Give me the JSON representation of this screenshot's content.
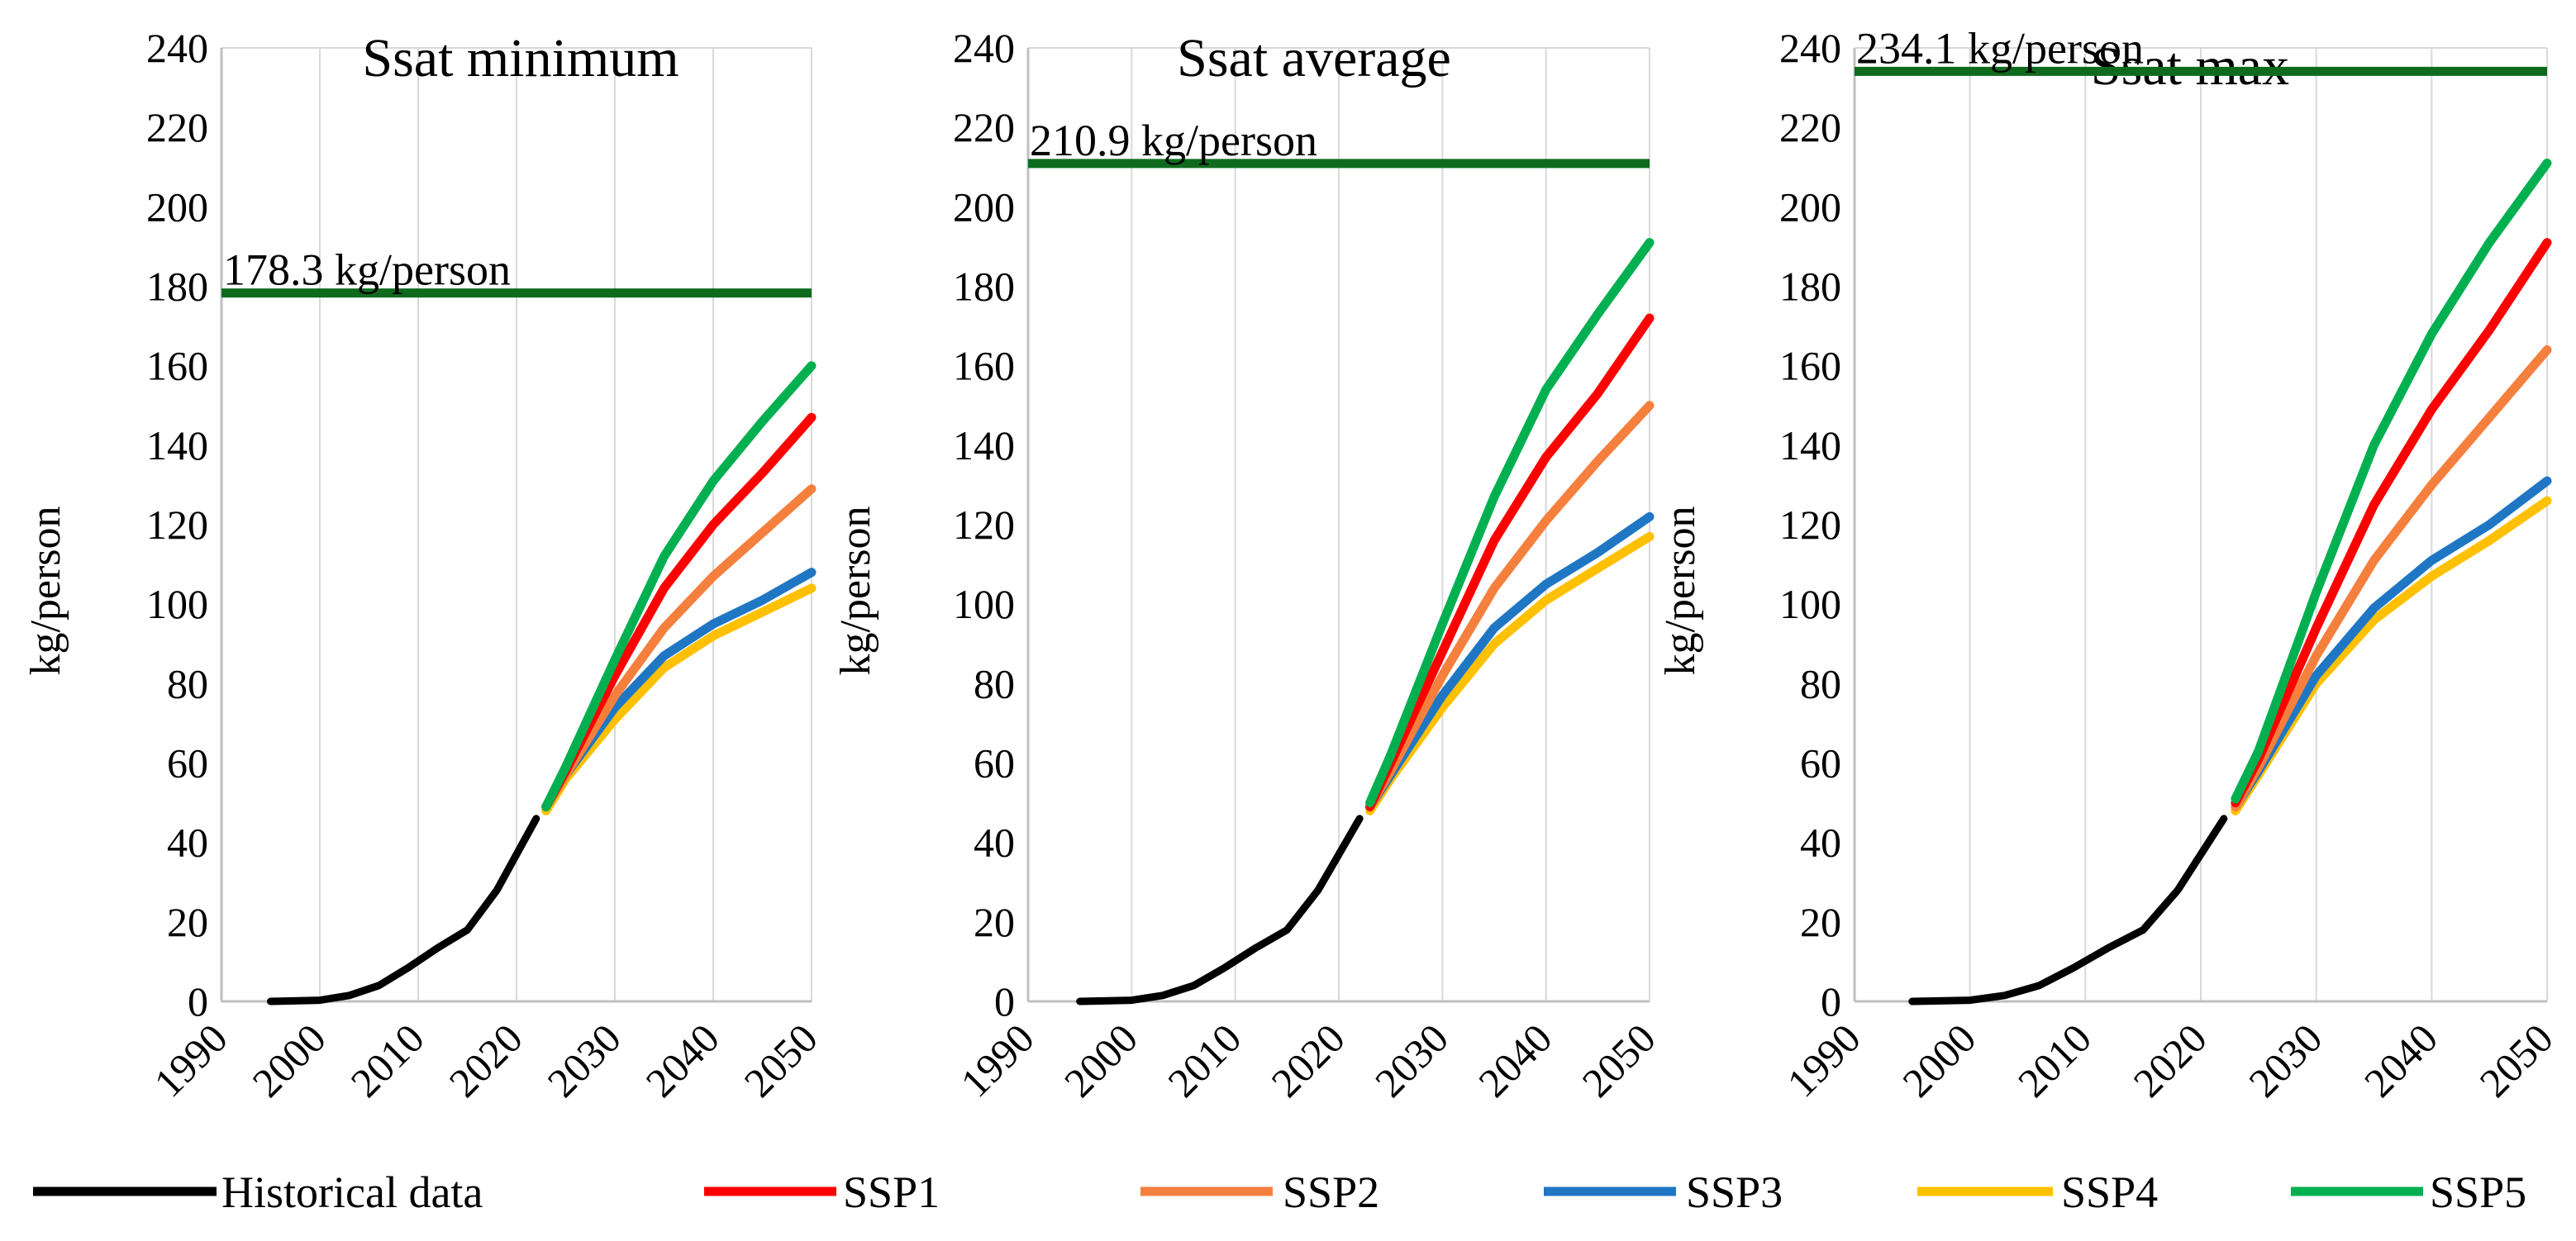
{
  "colors": {
    "historical": "#000000",
    "SSP1": "#ff0000",
    "SSP2": "#f5803e",
    "SSP3": "#1f77c4",
    "SSP4": "#ffc000",
    "SSP5": "#00b050",
    "saturation": "#0e6b1e",
    "grid": "#d9d9d9",
    "axis": "#bfbfbf"
  },
  "legend": [
    {
      "key": "historical",
      "label": "Historical data"
    },
    {
      "key": "SSP1",
      "label": "SSP1"
    },
    {
      "key": "SSP2",
      "label": "SSP2"
    },
    {
      "key": "SSP3",
      "label": "SSP3"
    },
    {
      "key": "SSP4",
      "label": "SSP4"
    },
    {
      "key": "SSP5",
      "label": "SSP5"
    }
  ],
  "chart_data": [
    {
      "type": "line",
      "title": "Ssat minimum",
      "xlabel": "",
      "ylabel": "kg/person",
      "xlim": [
        1990,
        2050
      ],
      "ylim": [
        0,
        240
      ],
      "xticks": [
        1990,
        2000,
        2010,
        2020,
        2030,
        2040,
        2050
      ],
      "yticks": [
        0,
        20,
        40,
        60,
        80,
        100,
        120,
        140,
        160,
        180,
        200,
        220,
        240
      ],
      "grid": "vertical",
      "saturation": {
        "value": 178.3,
        "label": "178.3 kg/person"
      },
      "historical": {
        "x": [
          1995,
          2000,
          2003,
          2006,
          2009,
          2012,
          2015,
          2018,
          2020,
          2022
        ],
        "y": [
          0,
          0.3,
          1.5,
          4,
          8.5,
          13.5,
          18,
          28,
          37,
          46
        ]
      },
      "series": [
        {
          "name": "SSP1",
          "x": [
            2023,
            2025,
            2030,
            2035,
            2040,
            2045,
            2050
          ],
          "y": [
            49,
            58,
            82,
            104,
            120,
            133,
            147
          ]
        },
        {
          "name": "SSP2",
          "x": [
            2023,
            2025,
            2030,
            2035,
            2040,
            2045,
            2050
          ],
          "y": [
            49,
            57,
            77,
            94,
            107,
            118,
            129
          ]
        },
        {
          "name": "SSP3",
          "x": [
            2023,
            2025,
            2030,
            2035,
            2040,
            2045,
            2050
          ],
          "y": [
            49,
            57,
            74,
            87,
            95,
            101,
            108
          ]
        },
        {
          "name": "SSP4",
          "x": [
            2023,
            2025,
            2030,
            2035,
            2040,
            2045,
            2050
          ],
          "y": [
            48,
            56,
            71,
            84,
            92,
            98,
            104
          ]
        },
        {
          "name": "SSP5",
          "x": [
            2023,
            2025,
            2030,
            2035,
            2040,
            2045,
            2050
          ],
          "y": [
            49,
            59,
            86,
            112,
            131,
            146,
            160
          ]
        }
      ]
    },
    {
      "type": "line",
      "title": "Ssat average",
      "xlabel": "",
      "ylabel": "kg/person",
      "xlim": [
        1990,
        2050
      ],
      "ylim": [
        0,
        240
      ],
      "xticks": [
        1990,
        2000,
        2010,
        2020,
        2030,
        2040,
        2050
      ],
      "yticks": [
        0,
        20,
        40,
        60,
        80,
        100,
        120,
        140,
        160,
        180,
        200,
        220,
        240
      ],
      "grid": "vertical",
      "saturation": {
        "value": 210.9,
        "label": "210.9 kg/person"
      },
      "historical": {
        "x": [
          1995,
          2000,
          2003,
          2006,
          2009,
          2012,
          2015,
          2018,
          2020,
          2022
        ],
        "y": [
          0,
          0.3,
          1.5,
          4,
          8.5,
          13.5,
          18,
          28,
          37,
          46
        ]
      },
      "series": [
        {
          "name": "SSP1",
          "x": [
            2023,
            2025,
            2030,
            2035,
            2040,
            2045,
            2050
          ],
          "y": [
            49,
            60,
            88,
            116,
            137,
            153,
            172
          ]
        },
        {
          "name": "SSP2",
          "x": [
            2023,
            2025,
            2030,
            2035,
            2040,
            2045,
            2050
          ],
          "y": [
            49,
            58,
            82,
            104,
            121,
            136,
            150
          ]
        },
        {
          "name": "SSP3",
          "x": [
            2023,
            2025,
            2030,
            2035,
            2040,
            2045,
            2050
          ],
          "y": [
            49,
            57,
            77,
            94,
            105,
            113,
            122
          ]
        },
        {
          "name": "SSP4",
          "x": [
            2023,
            2025,
            2030,
            2035,
            2040,
            2045,
            2050
          ],
          "y": [
            48,
            56,
            74,
            90,
            101,
            109,
            117
          ]
        },
        {
          "name": "SSP5",
          "x": [
            2023,
            2025,
            2030,
            2035,
            2040,
            2045,
            2050
          ],
          "y": [
            50,
            62,
            95,
            127,
            154,
            173,
            191
          ]
        }
      ]
    },
    {
      "type": "line",
      "title": "Ssat max",
      "xlabel": "",
      "ylabel": "kg/person",
      "xlim": [
        1990,
        2050
      ],
      "ylim": [
        0,
        240
      ],
      "xticks": [
        1990,
        2000,
        2010,
        2020,
        2030,
        2040,
        2050
      ],
      "yticks": [
        0,
        20,
        40,
        60,
        80,
        100,
        120,
        140,
        160,
        180,
        200,
        220,
        240
      ],
      "grid": "vertical",
      "saturation": {
        "value": 234.1,
        "label": "234.1 kg/person"
      },
      "historical": {
        "x": [
          1995,
          2000,
          2003,
          2006,
          2009,
          2012,
          2015,
          2018,
          2020,
          2022
        ],
        "y": [
          0,
          0.3,
          1.5,
          4,
          8.5,
          13.5,
          18,
          28,
          37,
          46
        ]
      },
      "series": [
        {
          "name": "SSP1",
          "x": [
            2023,
            2025,
            2030,
            2035,
            2040,
            2045,
            2050
          ],
          "y": [
            50,
            61,
            94,
            125,
            149,
            169,
            191
          ]
        },
        {
          "name": "SSP2",
          "x": [
            2023,
            2025,
            2030,
            2035,
            2040,
            2045,
            2050
          ],
          "y": [
            49,
            59,
            87,
            111,
            130,
            147,
            164
          ]
        },
        {
          "name": "SSP3",
          "x": [
            2023,
            2025,
            2030,
            2035,
            2040,
            2045,
            2050
          ],
          "y": [
            49,
            58,
            82,
            99,
            111,
            120,
            131
          ]
        },
        {
          "name": "SSP4",
          "x": [
            2023,
            2025,
            2030,
            2035,
            2040,
            2045,
            2050
          ],
          "y": [
            48,
            57,
            80,
            96,
            107,
            116,
            126
          ]
        },
        {
          "name": "SSP5",
          "x": [
            2023,
            2025,
            2030,
            2035,
            2040,
            2045,
            2050
          ],
          "y": [
            51,
            63,
            103,
            140,
            168,
            191,
            211
          ]
        }
      ]
    }
  ]
}
